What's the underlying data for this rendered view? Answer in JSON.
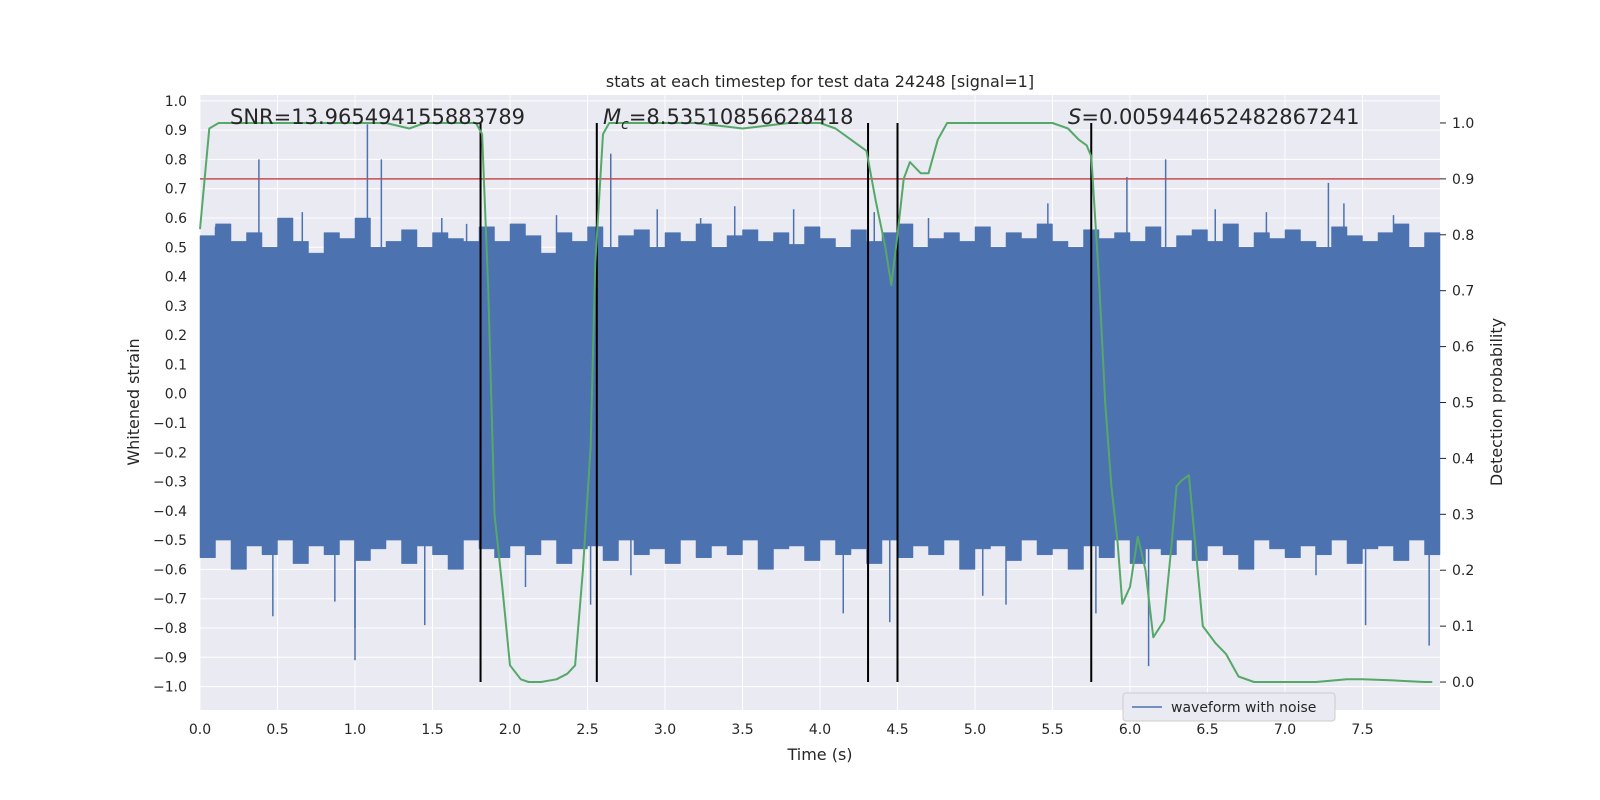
{
  "chart_data": {
    "type": "line",
    "title": "stats at each timestep for test data 24248 [signal=1]",
    "xlabel": "Time (s)",
    "ylabel_left": "Whitened strain",
    "ylabel_right": "Detection probability",
    "xlim": [
      0.0,
      8.0
    ],
    "ylim_left": [
      -1.08,
      1.02
    ],
    "ylim_right": [
      -0.05,
      1.05
    ],
    "xticks": [
      "0.0",
      "0.5",
      "1.0",
      "1.5",
      "2.0",
      "2.5",
      "3.0",
      "3.5",
      "4.0",
      "4.5",
      "5.0",
      "5.5",
      "6.0",
      "6.5",
      "7.0",
      "7.5"
    ],
    "yticks_left": [
      "1.0",
      "0.9",
      "0.8",
      "0.7",
      "0.6",
      "0.5",
      "0.4",
      "0.3",
      "0.2",
      "0.1",
      "0.0",
      "−0.1",
      "−0.2",
      "−0.3",
      "−0.4",
      "−0.5",
      "−0.6",
      "−0.7",
      "−0.8",
      "−0.9",
      "−1.0"
    ],
    "yticks_right": [
      "1.0",
      "0.9",
      "0.8",
      "0.7",
      "0.6",
      "0.5",
      "0.4",
      "0.3",
      "0.2",
      "0.1",
      "0.0"
    ],
    "grid": true,
    "annotations": {
      "snr": "SNR=13.965494155883789",
      "mc_symbol": "M",
      "mc_subscript": "c",
      "mc_value": "=8.53510856628418",
      "s_symbol": "S",
      "s_value": "=0.005944652482867241"
    },
    "threshold": {
      "value": 0.9,
      "axis": "right",
      "color": "#c44e52"
    },
    "event_lines": [
      1.81,
      2.56,
      4.31,
      4.5,
      5.75
    ],
    "legend": {
      "label": "waveform with noise",
      "location": "lower-right"
    },
    "series": [
      {
        "name": "waveform with noise",
        "axis": "left",
        "color": "#4c72b0",
        "envelope_top": [
          0.54,
          0.58,
          0.52,
          0.55,
          0.5,
          0.6,
          0.52,
          0.48,
          0.55,
          0.53,
          0.6,
          0.5,
          0.52,
          0.56,
          0.5,
          0.55,
          0.53,
          0.52,
          0.57,
          0.52,
          0.58,
          0.54,
          0.48,
          0.55,
          0.52,
          0.57,
          0.5,
          0.54,
          0.56,
          0.5,
          0.55,
          0.52,
          0.58,
          0.5,
          0.54,
          0.56,
          0.52,
          0.55,
          0.51,
          0.57,
          0.53,
          0.5,
          0.56,
          0.52,
          0.55,
          0.58,
          0.5,
          0.53,
          0.55,
          0.52,
          0.57,
          0.5,
          0.55,
          0.53,
          0.58,
          0.52,
          0.5,
          0.56,
          0.53,
          0.55,
          0.52,
          0.57,
          0.5,
          0.54,
          0.56,
          0.52,
          0.58,
          0.5,
          0.55,
          0.53,
          0.56,
          0.52,
          0.5,
          0.57,
          0.54,
          0.52,
          0.55,
          0.58,
          0.5,
          0.55
        ],
        "envelope_bottom": [
          -0.56,
          -0.5,
          -0.6,
          -0.52,
          -0.55,
          -0.5,
          -0.58,
          -0.52,
          -0.55,
          -0.5,
          -0.57,
          -0.53,
          -0.5,
          -0.58,
          -0.52,
          -0.55,
          -0.6,
          -0.5,
          -0.53,
          -0.56,
          -0.52,
          -0.55,
          -0.5,
          -0.58,
          -0.53,
          -0.52,
          -0.57,
          -0.5,
          -0.55,
          -0.53,
          -0.58,
          -0.5,
          -0.56,
          -0.52,
          -0.55,
          -0.5,
          -0.6,
          -0.53,
          -0.52,
          -0.57,
          -0.5,
          -0.55,
          -0.53,
          -0.58,
          -0.5,
          -0.56,
          -0.52,
          -0.55,
          -0.5,
          -0.6,
          -0.53,
          -0.52,
          -0.57,
          -0.5,
          -0.55,
          -0.53,
          -0.6,
          -0.52,
          -0.56,
          -0.5,
          -0.58,
          -0.53,
          -0.55,
          -0.5,
          -0.57,
          -0.52,
          -0.55,
          -0.6,
          -0.5,
          -0.53,
          -0.56,
          -0.52,
          -0.55,
          -0.5,
          -0.58,
          -0.53,
          -0.52,
          -0.57,
          -0.5,
          -0.55
        ],
        "spikes": [
          [
            0.1,
            0.57
          ],
          [
            0.38,
            0.8
          ],
          [
            0.47,
            -0.76
          ],
          [
            0.66,
            0.62
          ],
          [
            0.87,
            -0.71
          ],
          [
            1.0,
            -0.91
          ],
          [
            1.0,
            -0.8
          ],
          [
            1.08,
            0.92
          ],
          [
            1.17,
            0.8
          ],
          [
            1.45,
            -0.79
          ],
          [
            1.56,
            0.6
          ],
          [
            1.72,
            0.58
          ],
          [
            2.1,
            -0.66
          ],
          [
            2.3,
            0.61
          ],
          [
            2.52,
            -0.72
          ],
          [
            2.65,
            0.82
          ],
          [
            2.78,
            -0.62
          ],
          [
            2.95,
            0.63
          ],
          [
            3.23,
            0.6
          ],
          [
            3.45,
            0.64
          ],
          [
            3.83,
            0.63
          ],
          [
            4.15,
            -0.75
          ],
          [
            4.35,
            0.62
          ],
          [
            4.45,
            -0.78
          ],
          [
            4.7,
            0.6
          ],
          [
            5.05,
            -0.69
          ],
          [
            5.2,
            -0.72
          ],
          [
            5.47,
            0.65
          ],
          [
            5.78,
            -0.75
          ],
          [
            5.98,
            0.74
          ],
          [
            6.12,
            -0.93
          ],
          [
            6.23,
            0.8
          ],
          [
            6.55,
            0.63
          ],
          [
            6.88,
            0.62
          ],
          [
            7.2,
            -0.62
          ],
          [
            7.28,
            0.72
          ],
          [
            7.38,
            0.65
          ],
          [
            7.52,
            -0.79
          ],
          [
            7.7,
            0.61
          ],
          [
            7.93,
            -0.86
          ]
        ]
      },
      {
        "name": "detection probability",
        "axis": "right",
        "color": "#55a868",
        "x": [
          0.0,
          0.06,
          0.12,
          0.2,
          0.4,
          0.6,
          0.8,
          1.0,
          1.2,
          1.35,
          1.45,
          1.6,
          1.7,
          1.78,
          1.82,
          1.86,
          1.9,
          1.95,
          2.0,
          2.07,
          2.12,
          2.2,
          2.3,
          2.37,
          2.42,
          2.47,
          2.52,
          2.55,
          2.6,
          2.64,
          2.68,
          2.8,
          3.0,
          3.2,
          3.5,
          3.8,
          4.0,
          4.1,
          4.2,
          4.3,
          4.36,
          4.42,
          4.46,
          4.5,
          4.54,
          4.58,
          4.65,
          4.7,
          4.76,
          4.82,
          4.9,
          5.1,
          5.3,
          5.5,
          5.6,
          5.67,
          5.72,
          5.75,
          5.8,
          5.84,
          5.88,
          5.92,
          5.95,
          6.0,
          6.05,
          6.1,
          6.15,
          6.22,
          6.27,
          6.3,
          6.33,
          6.38,
          6.42,
          6.47,
          6.55,
          6.62,
          6.7,
          6.8,
          7.0,
          7.2,
          7.4,
          7.5,
          7.7,
          7.9,
          7.95
        ],
        "y": [
          0.81,
          0.99,
          1.0,
          1.0,
          1.0,
          1.0,
          1.0,
          1.0,
          1.0,
          0.99,
          1.0,
          1.0,
          1.0,
          1.0,
          0.98,
          0.7,
          0.3,
          0.17,
          0.03,
          0.005,
          0.0,
          0.0,
          0.005,
          0.015,
          0.03,
          0.2,
          0.42,
          0.75,
          0.98,
          1.0,
          1.0,
          1.0,
          1.0,
          1.0,
          0.99,
          1.0,
          1.0,
          0.99,
          0.97,
          0.95,
          0.86,
          0.78,
          0.71,
          0.8,
          0.9,
          0.93,
          0.91,
          0.91,
          0.97,
          1.0,
          1.0,
          1.0,
          1.0,
          1.0,
          0.99,
          0.97,
          0.96,
          0.94,
          0.72,
          0.5,
          0.35,
          0.25,
          0.14,
          0.17,
          0.26,
          0.2,
          0.08,
          0.11,
          0.25,
          0.35,
          0.36,
          0.37,
          0.25,
          0.1,
          0.07,
          0.05,
          0.01,
          0.0,
          0.0,
          0.0,
          0.005,
          0.005,
          0.003,
          0.0,
          0.0
        ]
      }
    ]
  }
}
